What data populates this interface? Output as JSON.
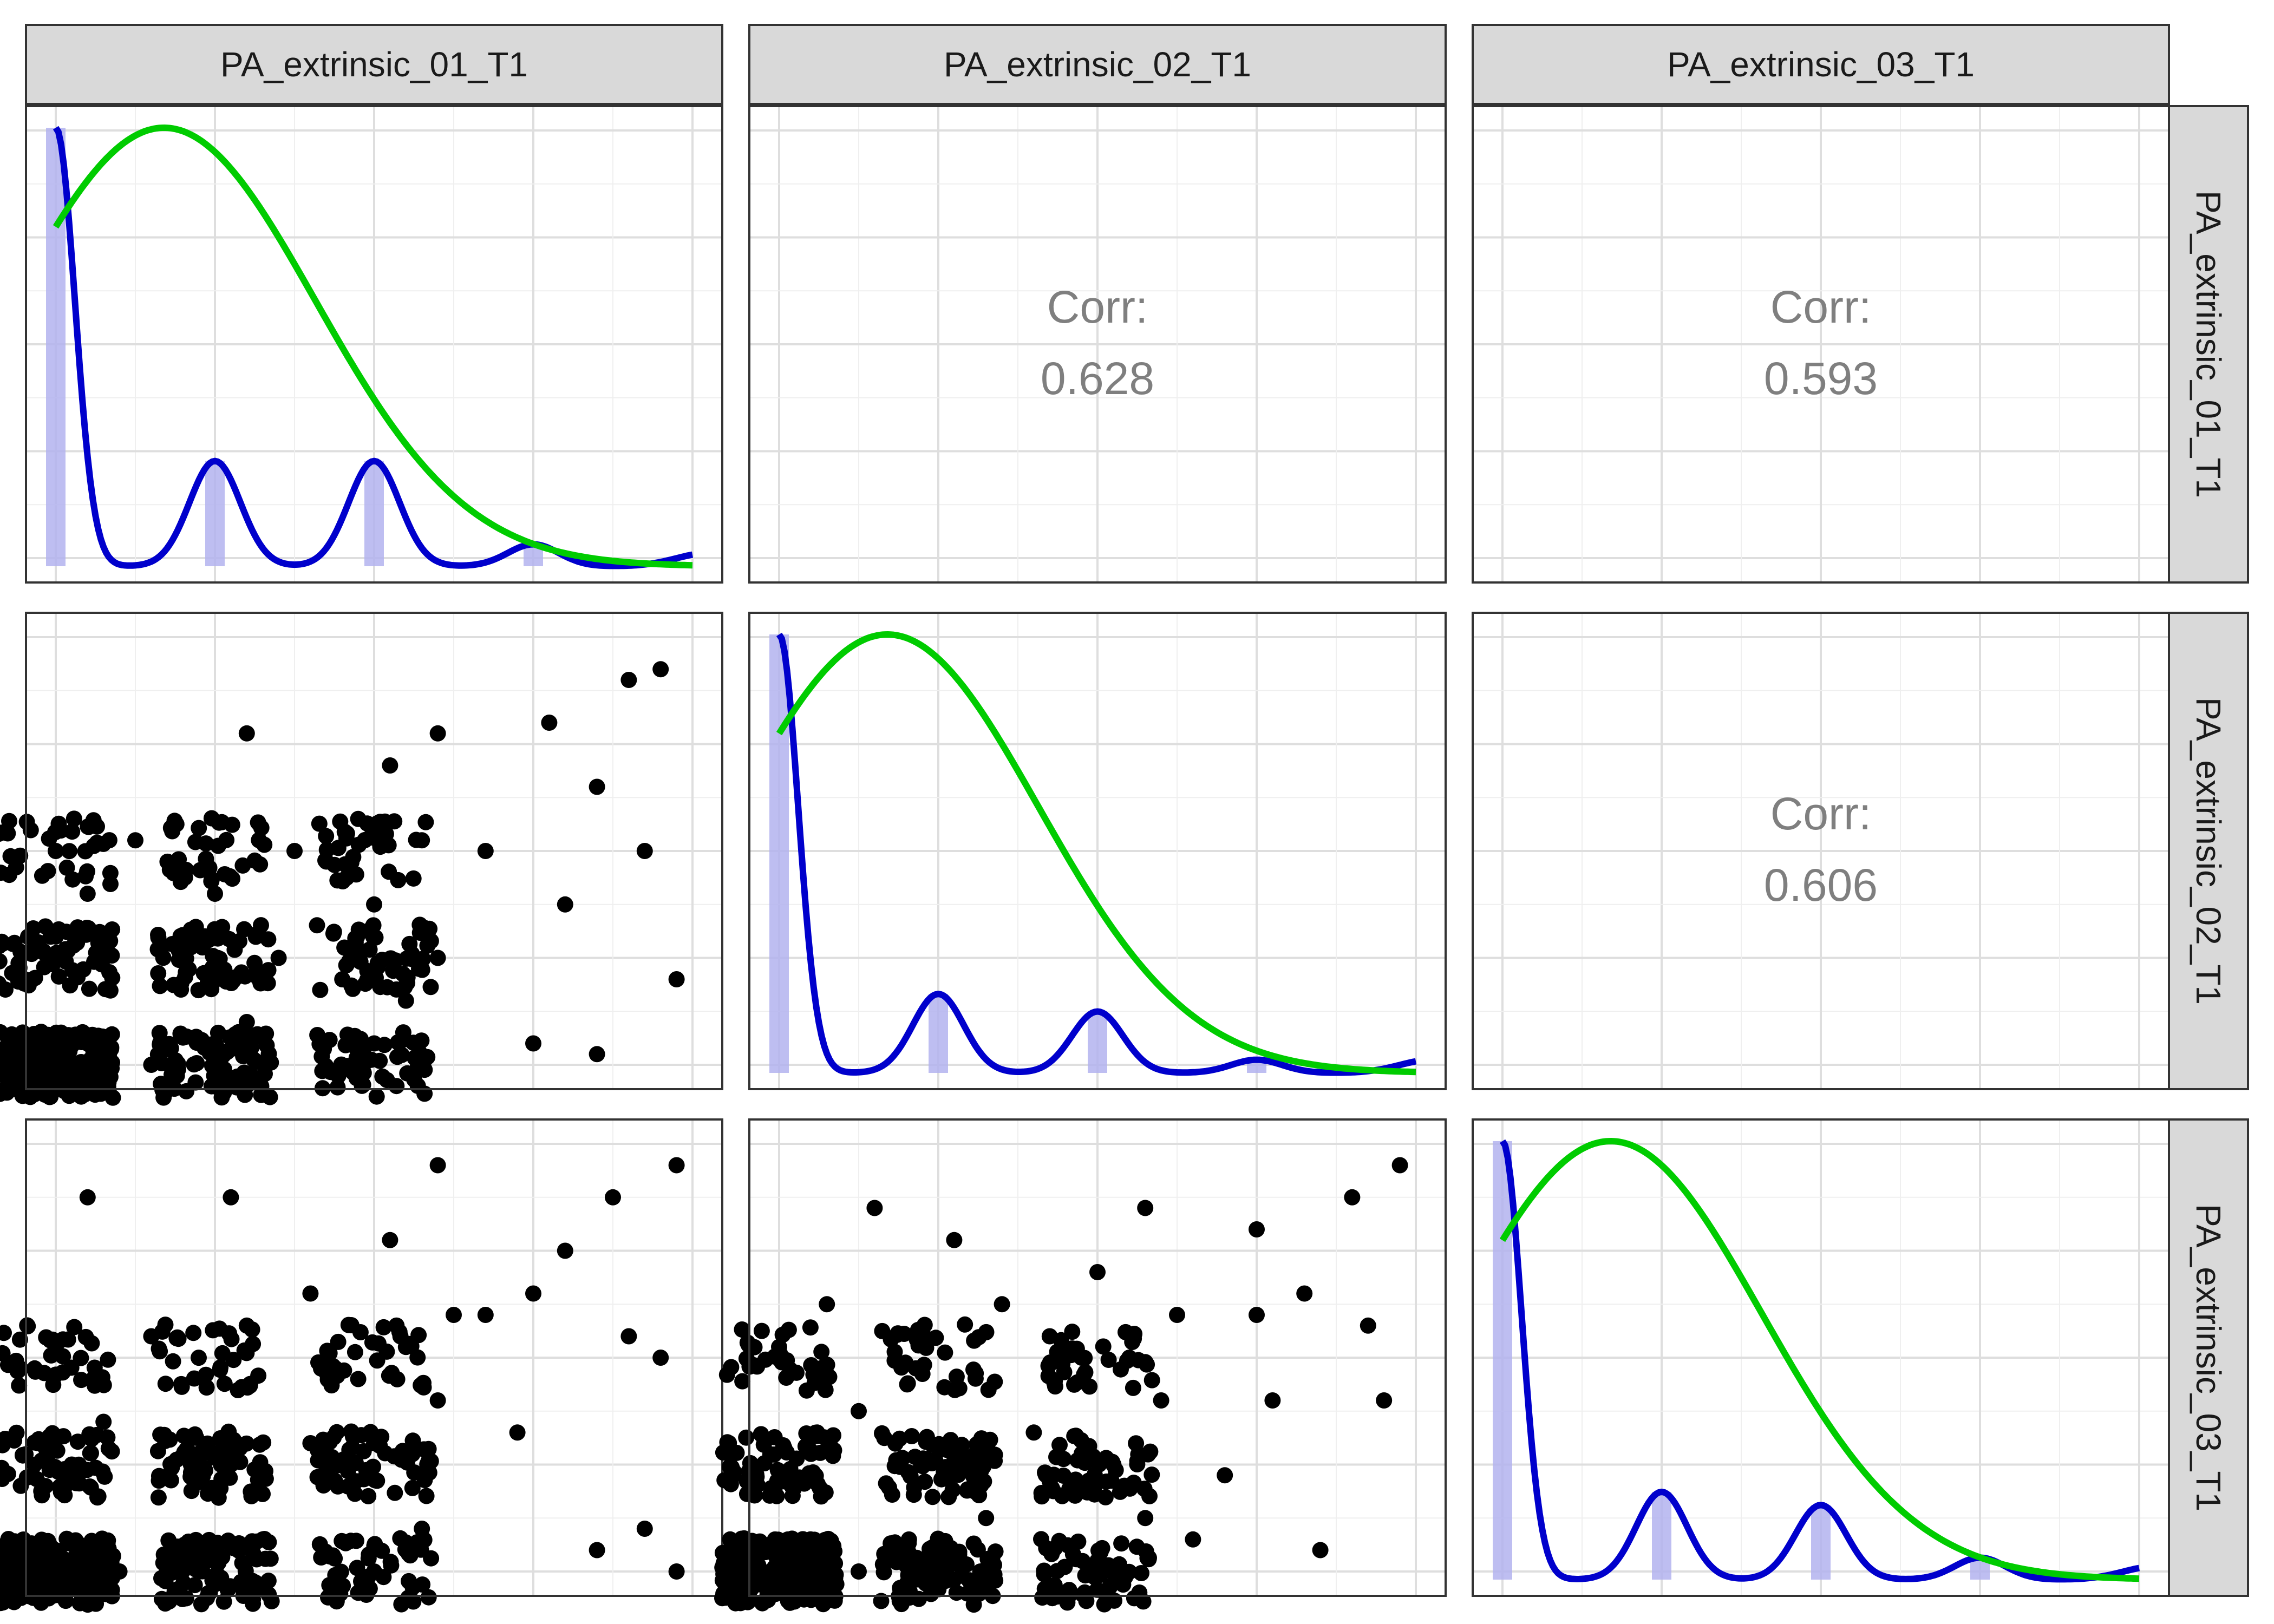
{
  "chart_data": {
    "type": "scatter",
    "variables": [
      "PA_extrinsic_01_T1",
      "PA_extrinsic_02_T1",
      "PA_extrinsic_03_T1"
    ],
    "layout": "pairs-matrix",
    "axis_range": [
      1,
      5
    ],
    "grid": true,
    "correlation_label": "Corr:",
    "correlations": [
      {
        "row": 0,
        "col": 1,
        "value": "0.628"
      },
      {
        "row": 0,
        "col": 2,
        "value": "0.593"
      },
      {
        "row": 1,
        "col": 2,
        "value": "0.606"
      }
    ],
    "diagonal": {
      "histogram_color": "#b3b3ee",
      "density_color": "#0000cc",
      "normal_curve_color": "#00cc00",
      "relative_frequency": [
        [
          1.0,
          0.24,
          0.24,
          0.05,
          0.0
        ],
        [
          1.0,
          0.18,
          0.14,
          0.03,
          0.0
        ],
        [
          1.0,
          0.2,
          0.17,
          0.05,
          0.0
        ]
      ]
    },
    "scatter_color": "#000000",
    "scatter_points": {
      "1_0": [
        [
          1.0,
          1.0
        ],
        [
          1.3,
          1.0
        ],
        [
          1.6,
          1.0
        ],
        [
          1.0,
          2.2
        ],
        [
          1.2,
          2.6
        ],
        [
          1.0,
          3.0
        ],
        [
          1.5,
          3.1
        ],
        [
          2.0,
          1.1
        ],
        [
          2.2,
          1.4
        ],
        [
          2.4,
          2.0
        ],
        [
          2.8,
          1.8
        ],
        [
          2.0,
          2.6
        ],
        [
          2.5,
          3.0
        ],
        [
          2.9,
          3.3
        ],
        [
          2.2,
          4.1
        ],
        [
          3.0,
          1.2
        ],
        [
          3.2,
          1.6
        ],
        [
          3.4,
          2.0
        ],
        [
          3.0,
          2.5
        ],
        [
          3.3,
          3.1
        ],
        [
          3.1,
          3.8
        ],
        [
          3.4,
          4.1
        ],
        [
          3.7,
          3.0
        ],
        [
          4.1,
          4.2
        ],
        [
          4.0,
          1.2
        ],
        [
          4.2,
          2.5
        ],
        [
          4.4,
          3.6
        ],
        [
          4.6,
          4.6
        ],
        [
          4.8,
          4.7
        ],
        [
          4.9,
          1.8
        ],
        [
          4.7,
          3.0
        ],
        [
          4.4,
          1.1
        ]
      ],
      "2_0": [
        [
          1.0,
          1.0
        ],
        [
          1.4,
          1.0
        ],
        [
          1.1,
          2.0
        ],
        [
          1.3,
          2.4
        ],
        [
          1.0,
          3.1
        ],
        [
          1.6,
          3.2
        ],
        [
          1.2,
          4.5
        ],
        [
          2.0,
          1.1
        ],
        [
          2.3,
          1.3
        ],
        [
          2.1,
          2.0
        ],
        [
          2.6,
          2.2
        ],
        [
          2.9,
          2.8
        ],
        [
          2.2,
          3.3
        ],
        [
          2.6,
          3.6
        ],
        [
          2.1,
          4.5
        ],
        [
          3.0,
          1.0
        ],
        [
          3.3,
          1.4
        ],
        [
          3.0,
          2.2
        ],
        [
          3.4,
          2.6
        ],
        [
          3.2,
          3.1
        ],
        [
          3.5,
          3.4
        ],
        [
          3.1,
          4.1
        ],
        [
          3.4,
          4.8
        ],
        [
          3.7,
          3.4
        ],
        [
          4.0,
          3.6
        ],
        [
          3.9,
          2.3
        ],
        [
          4.2,
          4.0
        ],
        [
          4.4,
          1.2
        ],
        [
          4.7,
          1.4
        ],
        [
          4.6,
          3.2
        ],
        [
          4.5,
          4.5
        ],
        [
          4.9,
          4.8
        ],
        [
          4.8,
          3.0
        ],
        [
          4.9,
          1.0
        ]
      ],
      "2_1": [
        [
          1.0,
          1.0
        ],
        [
          1.5,
          1.0
        ],
        [
          1.2,
          2.1
        ],
        [
          1.5,
          2.5
        ],
        [
          1.0,
          3.1
        ],
        [
          1.3,
          3.5
        ],
        [
          1.6,
          4.4
        ],
        [
          2.0,
          1.0
        ],
        [
          2.3,
          1.5
        ],
        [
          2.2,
          2.0
        ],
        [
          2.6,
          2.3
        ],
        [
          2.9,
          3.0
        ],
        [
          2.4,
          3.5
        ],
        [
          2.1,
          4.1
        ],
        [
          2.7,
          3.2
        ],
        [
          3.0,
          1.1
        ],
        [
          3.3,
          1.5
        ],
        [
          3.1,
          2.0
        ],
        [
          3.4,
          2.6
        ],
        [
          3.2,
          3.0
        ],
        [
          3.5,
          3.4
        ],
        [
          3.0,
          3.8
        ],
        [
          3.3,
          4.4
        ],
        [
          3.6,
          1.3
        ],
        [
          3.8,
          1.9
        ],
        [
          4.0,
          3.4
        ],
        [
          4.1,
          2.6
        ],
        [
          4.3,
          3.6
        ],
        [
          4.0,
          4.2
        ],
        [
          4.6,
          4.5
        ],
        [
          4.7,
          3.3
        ],
        [
          4.8,
          2.6
        ],
        [
          4.9,
          4.8
        ],
        [
          4.4,
          1.2
        ]
      ]
    }
  }
}
